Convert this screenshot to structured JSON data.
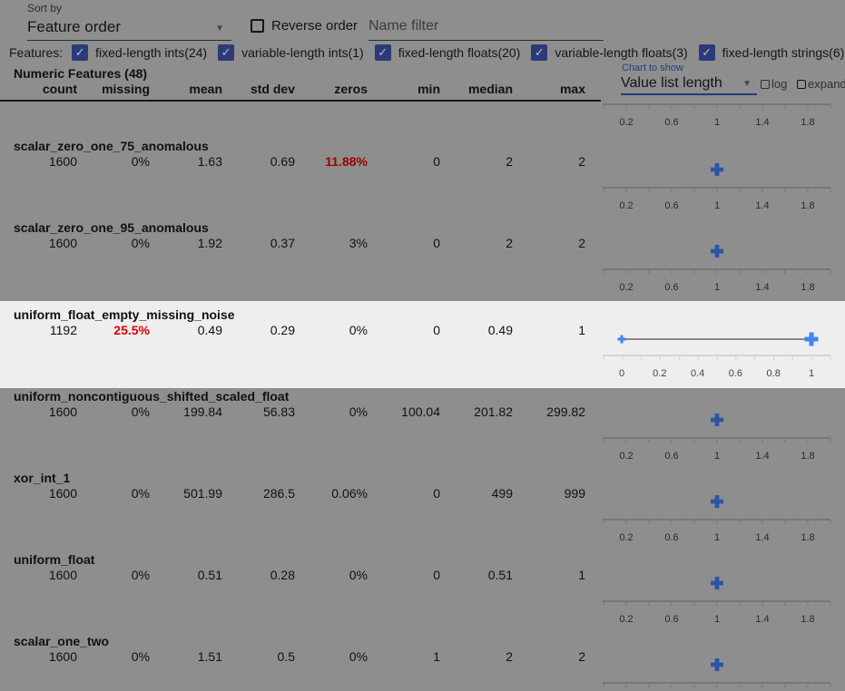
{
  "controls": {
    "sort_label": "Sort by",
    "sort_value": "Feature order",
    "reverse_label": "Reverse order",
    "name_filter_placeholder": "Name filter",
    "features_label": "Features:",
    "feature_filters": [
      {
        "label": "fixed-length ints(24)",
        "checked": true
      },
      {
        "label": "variable-length ints(1)",
        "checked": true
      },
      {
        "label": "fixed-length floats(20)",
        "checked": true
      },
      {
        "label": "variable-length floats(3)",
        "checked": true
      },
      {
        "label": "fixed-length strings(6)",
        "checked": true
      }
    ],
    "chart_label": "Chart to show",
    "chart_value": "Value list length",
    "log_label": "log",
    "expand_label": "expand"
  },
  "table": {
    "title": "Numeric Features (48)",
    "columns": [
      "count",
      "missing",
      "mean",
      "std dev",
      "zeros",
      "min",
      "median",
      "max"
    ],
    "rows": [
      {
        "name": "scalar_zero_one_75_anomalous",
        "values": [
          "1600",
          "0%",
          "1.63",
          "0.69",
          "11.88%",
          "0",
          "2",
          "2"
        ],
        "highlight": "zeros"
      },
      {
        "name": "scalar_zero_one_95_anomalous",
        "values": [
          "1600",
          "0%",
          "1.92",
          "0.37",
          "3%",
          "0",
          "2",
          "2"
        ]
      },
      {
        "name": "uniform_float_empty_missing_noise",
        "values": [
          "1192",
          "25.5%",
          "0.49",
          "0.29",
          "0%",
          "0",
          "0.49",
          "1"
        ],
        "highlight": "missing",
        "selected": true
      },
      {
        "name": "uniform_noncontiguous_shifted_scaled_float",
        "values": [
          "1600",
          "0%",
          "199.84",
          "56.83",
          "0%",
          "100.04",
          "201.82",
          "299.82"
        ]
      },
      {
        "name": "xor_int_1",
        "values": [
          "1600",
          "0%",
          "501.99",
          "286.5",
          "0.06%",
          "0",
          "499",
          "999"
        ]
      },
      {
        "name": "uniform_float",
        "values": [
          "1600",
          "0%",
          "0.51",
          "0.28",
          "0%",
          "0",
          "0.51",
          "1"
        ]
      },
      {
        "name": "scalar_one_two",
        "values": [
          "1600",
          "0%",
          "1.51",
          "0.5",
          "0%",
          "1",
          "2",
          "2"
        ]
      }
    ]
  },
  "charts": {
    "default_axis": {
      "ticks": [
        "0.2",
        "0.6",
        "1",
        "1.4",
        "1.8"
      ],
      "range": [
        0,
        2
      ],
      "markers": [
        1
      ]
    },
    "selected_axis": {
      "ticks": [
        "0",
        "0.2",
        "0.4",
        "0.6",
        "0.8",
        "1"
      ],
      "range": [
        0,
        1
      ],
      "markers": [
        0,
        1
      ]
    }
  },
  "colors": {
    "accent": "#3f51b5",
    "marker": "#4285f4",
    "warning": "#e00000"
  }
}
